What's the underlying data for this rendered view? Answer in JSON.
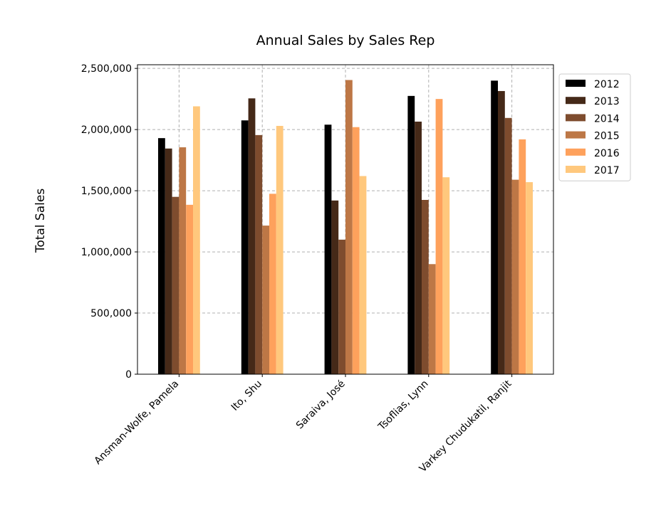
{
  "chart_data": {
    "type": "bar",
    "title": "Annual Sales by Sales Rep",
    "xlabel": "",
    "ylabel": "Total Sales",
    "categories": [
      "Ansman-Wolfe, Pamela",
      "Ito, Shu",
      "Saraiva, José",
      "Tsoflias, Lynn",
      "Varkey Chudukatil, Ranjit"
    ],
    "yticks": [
      "0",
      "500,000",
      "1,000,000",
      "1,500,000",
      "2,000,000",
      "2,500,000"
    ],
    "ylim": [
      0,
      2530000
    ],
    "grid": true,
    "legend_position": "outside-right",
    "series": [
      {
        "name": "2012",
        "color": "#000000",
        "values": [
          1930000,
          2075000,
          2040000,
          2275000,
          2400000
        ]
      },
      {
        "name": "2013",
        "color": "#452918",
        "values": [
          1845000,
          2255000,
          1420000,
          2065000,
          2315000
        ]
      },
      {
        "name": "2014",
        "color": "#7e4c2e",
        "values": [
          1450000,
          1955000,
          1100000,
          1425000,
          2095000
        ]
      },
      {
        "name": "2015",
        "color": "#bd7746",
        "values": [
          1855000,
          1215000,
          2405000,
          900000,
          1590000
        ]
      },
      {
        "name": "2016",
        "color": "#fea15c",
        "values": [
          1385000,
          1475000,
          2020000,
          2250000,
          1920000
        ]
      },
      {
        "name": "2017",
        "color": "#ffc87d",
        "values": [
          2190000,
          2030000,
          1620000,
          1610000,
          1570000
        ]
      }
    ]
  }
}
